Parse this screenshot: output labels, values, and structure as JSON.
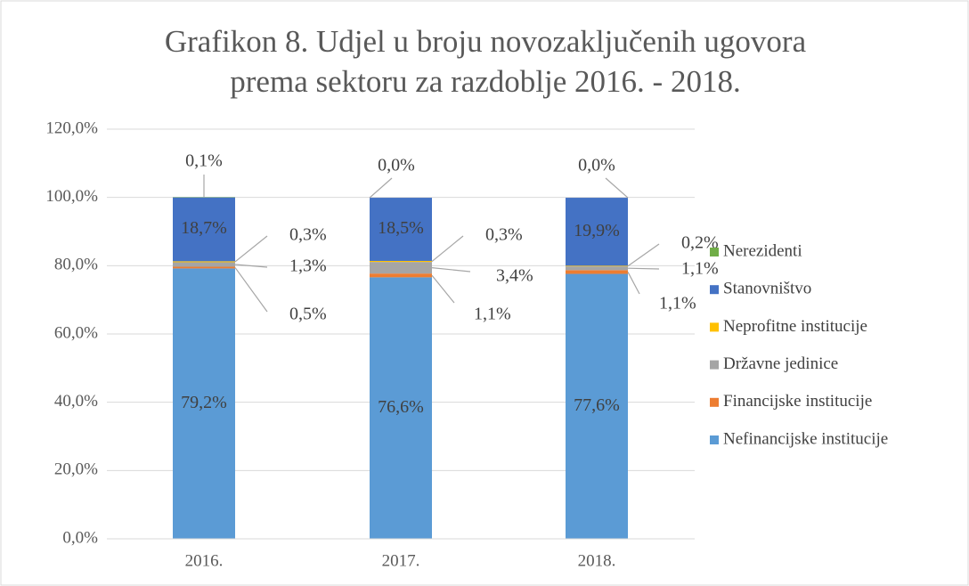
{
  "chart_data": {
    "type": "stacked_bar",
    "title": [
      "Grafikon 8. Udjel u broju novozaključenih ugovora",
      "prema sektoru za razdoblje 2016. - 2018."
    ],
    "categories": [
      "2016.",
      "2017.",
      "2018."
    ],
    "series": [
      {
        "name": "Nefinancijske institucije",
        "color": "#5b9bd5",
        "values": [
          79.2,
          76.6,
          77.6
        ],
        "value_labels": [
          "79,2%",
          "76,6%",
          "77,6%"
        ]
      },
      {
        "name": "Financijske institucije",
        "color": "#ed7d31",
        "values": [
          0.5,
          1.1,
          1.1
        ],
        "value_labels": [
          "0,5%",
          "1,1%",
          "1,1%"
        ]
      },
      {
        "name": "Državne jedinice",
        "color": "#a5a5a5",
        "values": [
          1.3,
          3.4,
          1.1
        ],
        "value_labels": [
          "1,3%",
          "3,4%",
          "1,1%"
        ]
      },
      {
        "name": "Neprofitne institucije",
        "color": "#ffc000",
        "values": [
          0.3,
          0.3,
          0.2
        ],
        "value_labels": [
          "0,3%",
          "0,3%",
          "0,2%"
        ]
      },
      {
        "name": "Stanovništvo",
        "color": "#4472c4",
        "values": [
          18.7,
          18.5,
          19.9
        ],
        "value_labels": [
          "18,7%",
          "18,5%",
          "19,9%"
        ]
      },
      {
        "name": "Nerezidenti",
        "color": "#70ad47",
        "values": [
          0.1,
          0.0,
          0.0
        ],
        "value_labels": [
          "0,1%",
          "0,0%",
          "0,0%"
        ]
      }
    ],
    "ylim": [
      0,
      120
    ],
    "yticks": [
      {
        "value": 0,
        "label": "0,0%"
      },
      {
        "value": 20,
        "label": "20,0%"
      },
      {
        "value": 40,
        "label": "40,0%"
      },
      {
        "value": 60,
        "label": "60,0%"
      },
      {
        "value": 80,
        "label": "80,0%"
      },
      {
        "value": 100,
        "label": "100,0%"
      },
      {
        "value": 120,
        "label": "120,0%"
      }
    ],
    "grid": true,
    "legend": "right"
  }
}
